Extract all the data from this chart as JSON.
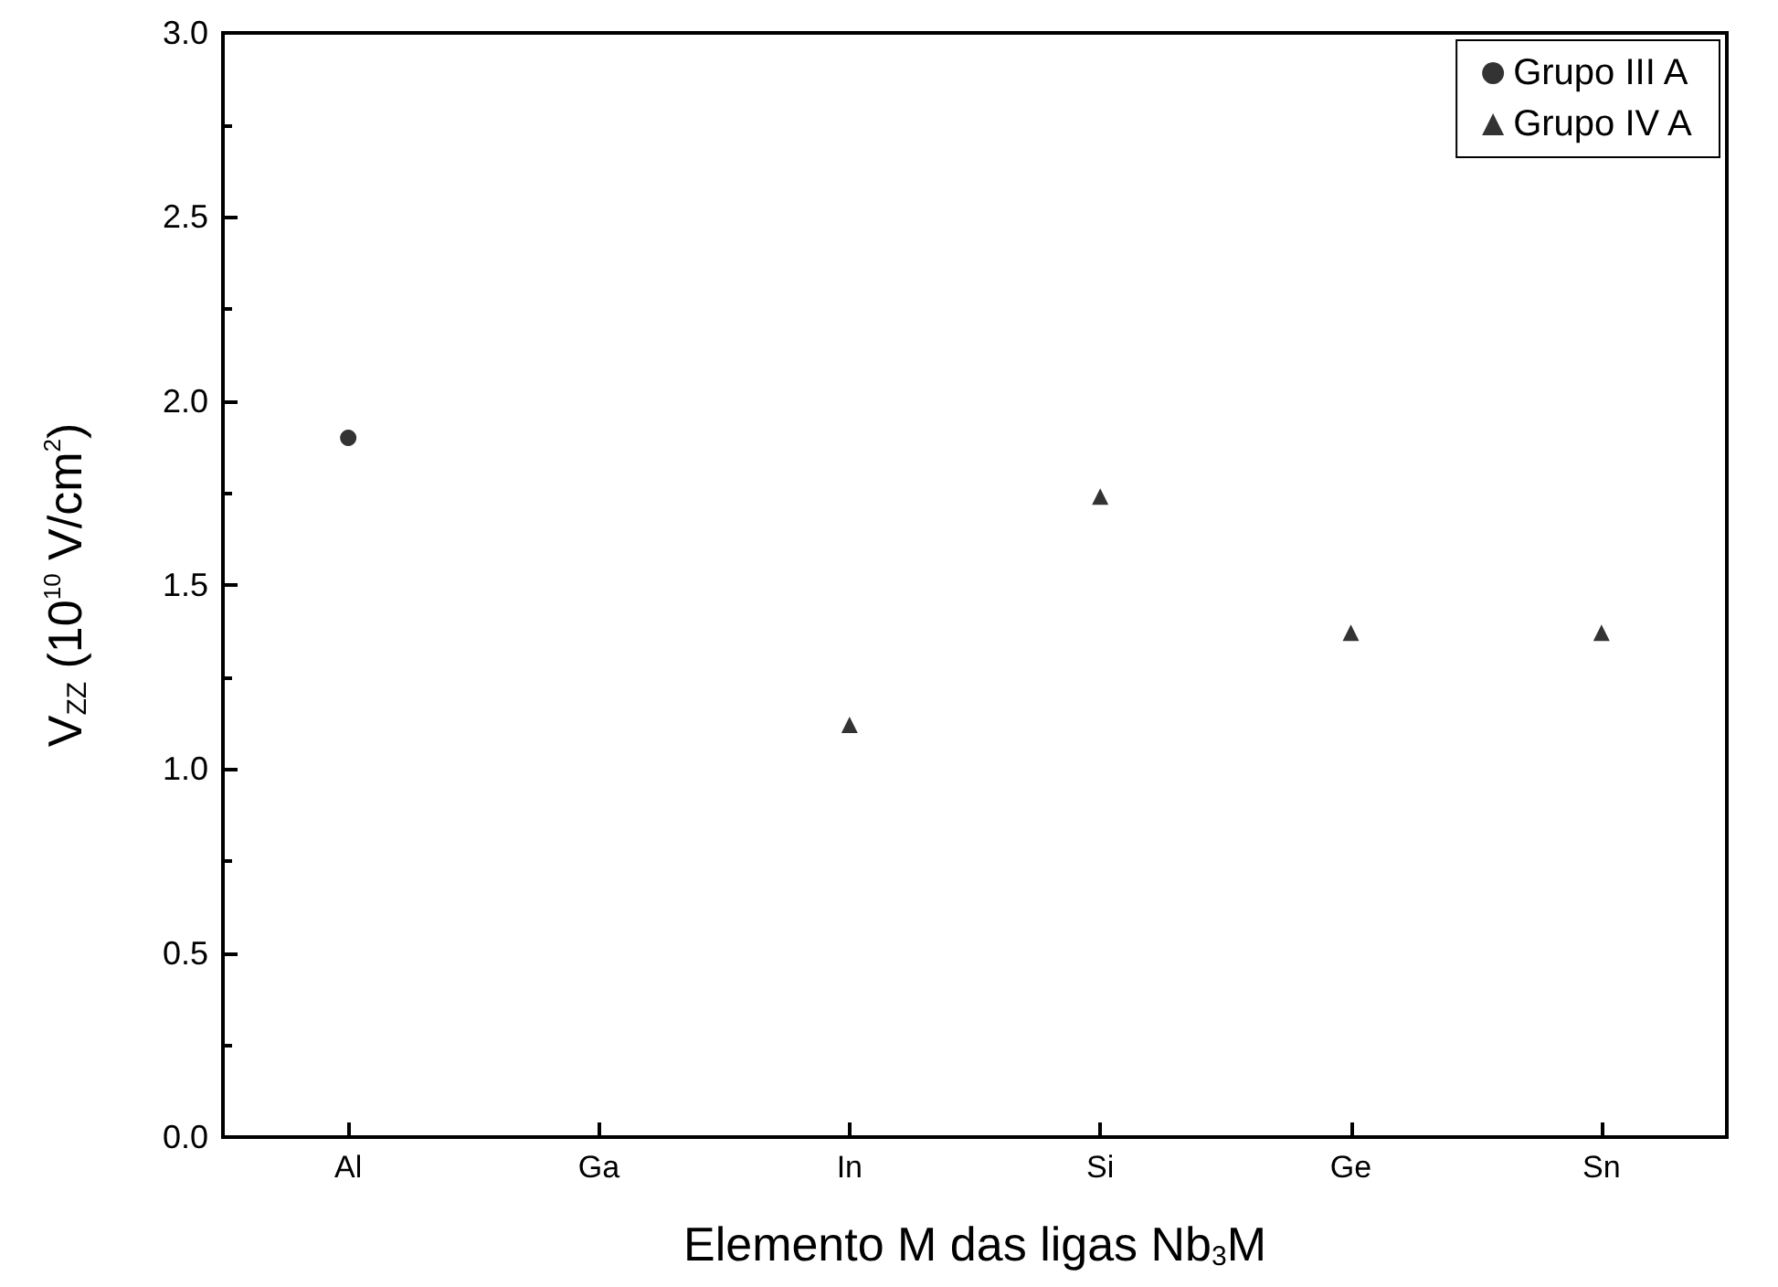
{
  "chart_data": {
    "type": "scatter",
    "xlabel": "Elemento M das ligas Nb$_{3}$M",
    "ylabel": "V$_{ZZ}$ (10$^{10}$ V/cm$^{2}$)",
    "categories": [
      "Al",
      "Ga",
      "In",
      "Si",
      "Ge",
      "Sn"
    ],
    "series": [
      {
        "name": "Grupo III A",
        "color": "#000000",
        "marker": "circle",
        "values": [
          1.9,
          null,
          null,
          null,
          null,
          null
        ]
      },
      {
        "name": "Grupo IV A",
        "color": "#000000",
        "marker": "triangle",
        "values": [
          null,
          null,
          1.12,
          1.74,
          1.37,
          1.37
        ]
      }
    ],
    "ylim": [
      0,
      3
    ],
    "yticks": [
      {
        "value": 0,
        "label": "0.0"
      },
      0.5,
      {
        "value": 1,
        "label": "1.0"
      },
      1.5,
      {
        "value": 2,
        "label": "2.0"
      },
      2.5,
      {
        "value": 3,
        "label": "3.0"
      }
    ],
    "grid": false,
    "legend": "top right"
  }
}
